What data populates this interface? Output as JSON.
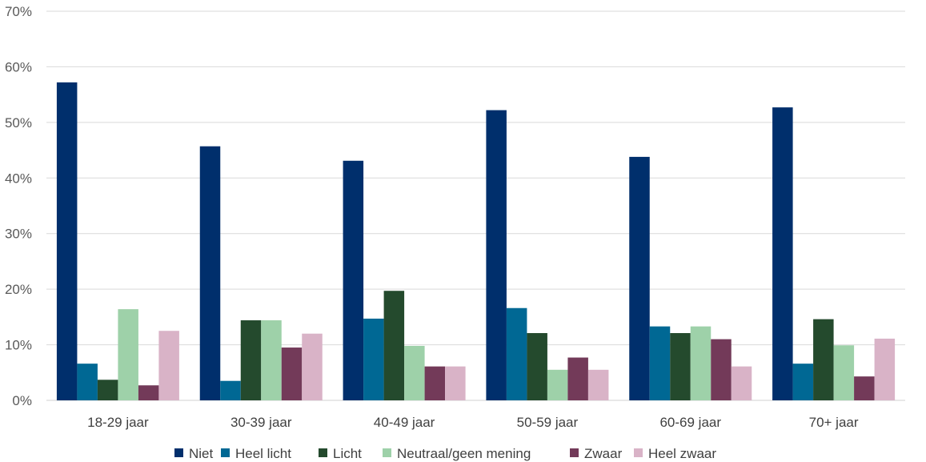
{
  "chart_data": {
    "type": "bar",
    "title": "",
    "xlabel": "",
    "ylabel": "",
    "ylim": [
      0,
      70
    ],
    "yticks": [
      "0%",
      "10%",
      "20%",
      "30%",
      "40%",
      "50%",
      "60%",
      "70%"
    ],
    "grid": true,
    "legend_position": "bottom",
    "categories": [
      "18-29 jaar",
      "30-39 jaar",
      "40-49 jaar",
      "50-59 jaar",
      "60-69 jaar",
      "70+ jaar"
    ],
    "series": [
      {
        "name": "Niet",
        "color": "#002F6C",
        "values": [
          57.2,
          45.7,
          43.1,
          52.2,
          43.8,
          52.7
        ]
      },
      {
        "name": "Heel licht",
        "color": "#006894",
        "values": [
          6.6,
          3.5,
          14.7,
          16.6,
          13.3,
          6.6
        ]
      },
      {
        "name": "Licht",
        "color": "#244A2D",
        "values": [
          3.7,
          14.4,
          19.7,
          12.1,
          12.1,
          14.6
        ]
      },
      {
        "name": "Neutraal/geen mening",
        "color": "#9ED1A9",
        "values": [
          16.4,
          14.4,
          9.8,
          5.5,
          13.3,
          9.9
        ]
      },
      {
        "name": "Zwaar",
        "color": "#733A59",
        "values": [
          2.7,
          9.5,
          6.1,
          7.7,
          11.0,
          4.3
        ]
      },
      {
        "name": "Heel zwaar",
        "color": "#D9B3C7",
        "values": [
          12.5,
          12.0,
          6.1,
          5.5,
          6.1,
          11.1
        ]
      }
    ]
  }
}
